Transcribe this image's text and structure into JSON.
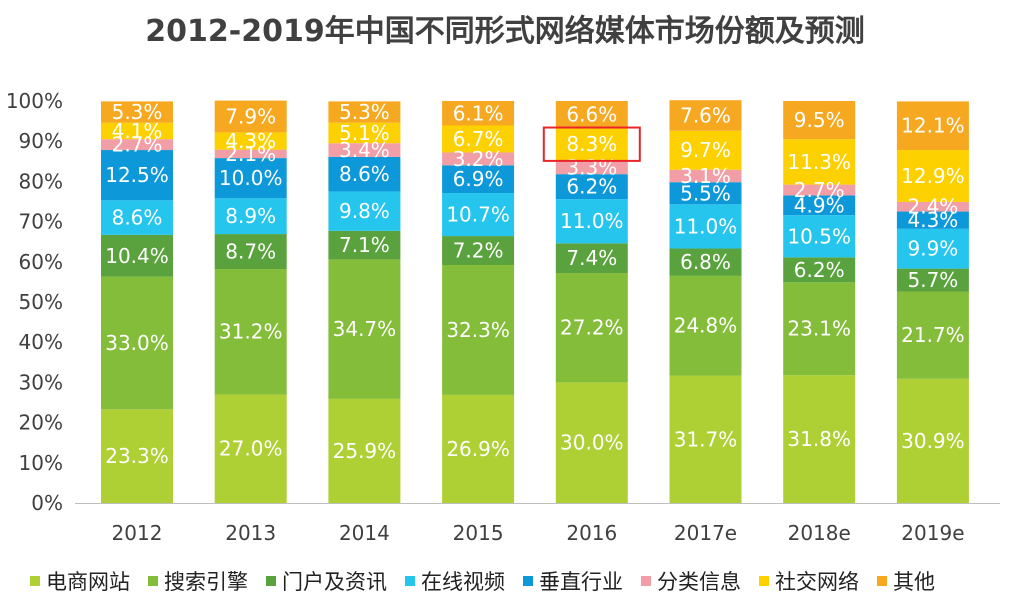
{
  "chart_data": {
    "type": "bar",
    "stacked": true,
    "title": "2012-2019年中国不同形式网络媒体市场份额及预测",
    "xlabel": "",
    "ylabel": "",
    "ylim": [
      0,
      100
    ],
    "y_ticks": [
      "0%",
      "10%",
      "20%",
      "30%",
      "40%",
      "50%",
      "60%",
      "70%",
      "80%",
      "90%",
      "100%"
    ],
    "grid": false,
    "legend_position": "bottom",
    "categories": [
      "2012",
      "2013",
      "2014",
      "2015",
      "2016",
      "2017e",
      "2018e",
      "2019e"
    ],
    "series": [
      {
        "name": "电商网站",
        "color": "#aed035",
        "values": [
          23.3,
          27.0,
          25.9,
          26.9,
          30.0,
          31.7,
          31.8,
          30.9
        ]
      },
      {
        "name": "搜索引擎",
        "color": "#84bd39",
        "values": [
          33.0,
          31.2,
          34.7,
          32.3,
          27.2,
          24.8,
          23.1,
          21.7
        ]
      },
      {
        "name": "门户及资讯",
        "color": "#5aa23e",
        "values": [
          10.4,
          8.7,
          7.1,
          7.2,
          7.4,
          6.8,
          6.2,
          5.7
        ]
      },
      {
        "name": "在线视频",
        "color": "#25c5ee",
        "values": [
          8.6,
          8.9,
          9.8,
          10.7,
          11.0,
          11.0,
          10.5,
          9.9
        ]
      },
      {
        "name": "垂直行业",
        "color": "#0d98d9",
        "values": [
          12.5,
          10.0,
          8.6,
          6.9,
          6.2,
          5.5,
          4.9,
          4.3
        ]
      },
      {
        "name": "分类信息",
        "color": "#f29ea7",
        "values": [
          2.7,
          2.1,
          3.4,
          3.2,
          3.3,
          3.1,
          2.7,
          2.4
        ]
      },
      {
        "name": "社交网络",
        "color": "#fdd000",
        "values": [
          4.1,
          4.3,
          5.1,
          6.7,
          8.3,
          9.7,
          11.3,
          12.9
        ]
      },
      {
        "name": "其他",
        "color": "#f6a820",
        "values": [
          5.3,
          7.9,
          5.3,
          6.1,
          6.6,
          7.6,
          9.5,
          12.1
        ]
      }
    ],
    "highlight": {
      "category": "2016",
      "series": "社交网络",
      "color": "#e8262a"
    }
  }
}
